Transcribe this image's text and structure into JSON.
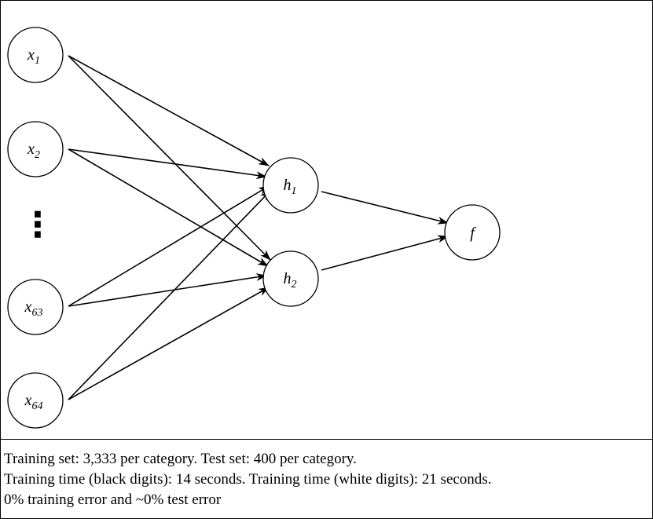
{
  "diagram": {
    "inputs": [
      {
        "base": "x",
        "sub": "1"
      },
      {
        "base": "x",
        "sub": "2"
      },
      {
        "base": "x",
        "sub": "63"
      },
      {
        "base": "x",
        "sub": "64"
      }
    ],
    "hidden": [
      {
        "base": "h",
        "sub": "1"
      },
      {
        "base": "h",
        "sub": "2"
      }
    ],
    "output": {
      "base": "f",
      "sub": ""
    },
    "ellipsis": "⋮"
  },
  "caption": {
    "line1": "Training set: 3,333 per category. Test set: 400 per category.",
    "line2": "Training time (black digits): 14 seconds. Training time (white digits): 21 seconds.",
    "line3": "0% training error and ~0% test error"
  }
}
